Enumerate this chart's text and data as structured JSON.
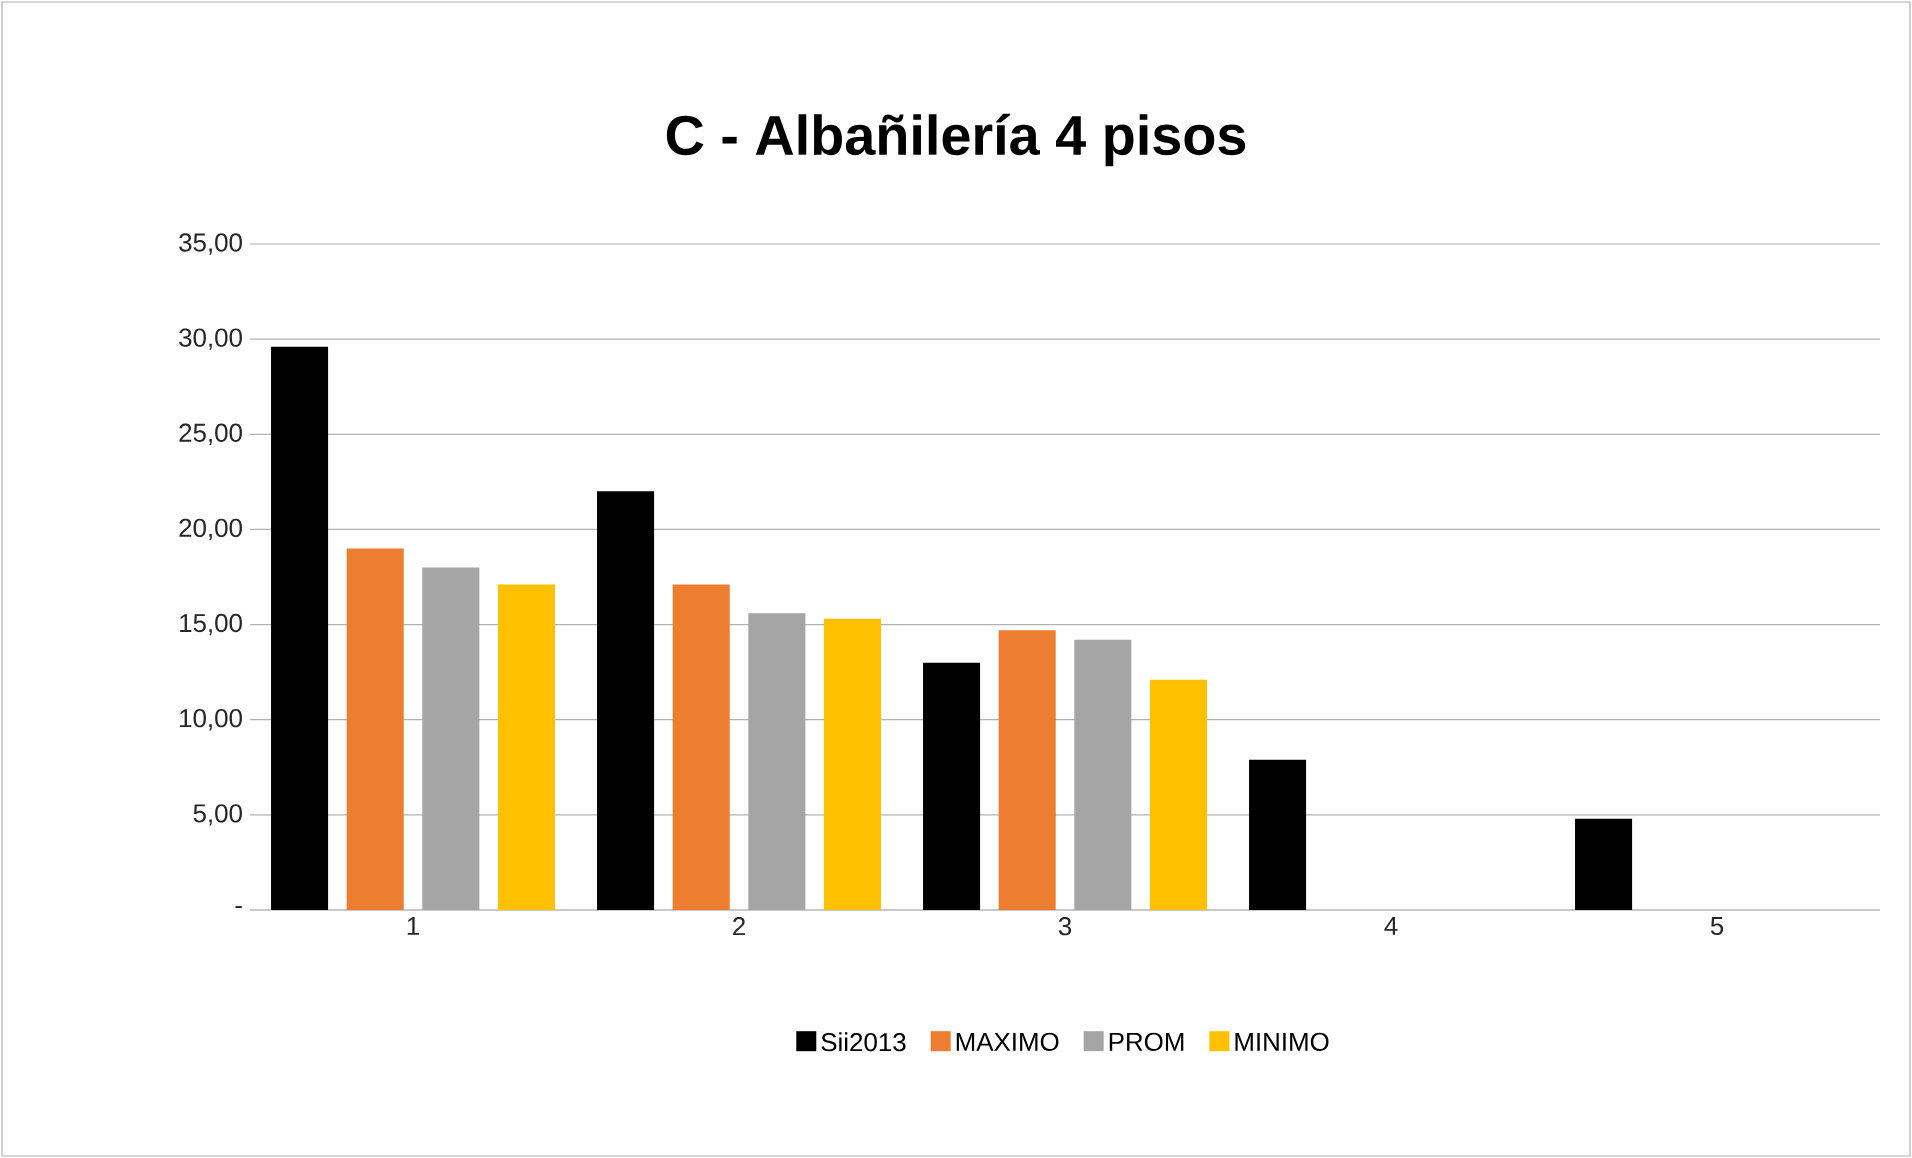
{
  "chart_data": {
    "type": "bar",
    "title": "C - Albañilería 4 pisos",
    "categories": [
      "1",
      "2",
      "3",
      "4",
      "5"
    ],
    "series": [
      {
        "name": "Sii2013",
        "color": "#000000",
        "values": [
          29.6,
          22.0,
          13.0,
          7.9,
          4.8
        ]
      },
      {
        "name": "MAXIMO",
        "color": "#ed7d31",
        "values": [
          19.0,
          17.1,
          14.7,
          null,
          null
        ]
      },
      {
        "name": "PROM",
        "color": "#a5a5a5",
        "values": [
          18.0,
          15.6,
          14.2,
          null,
          null
        ]
      },
      {
        "name": "MINIMO",
        "color": "#ffc000",
        "values": [
          17.1,
          15.3,
          12.1,
          null,
          null
        ]
      }
    ],
    "ylim": [
      0,
      35
    ],
    "yticks": [
      {
        "value": 0,
        "label": "-"
      },
      {
        "value": 5,
        "label": "5,00"
      },
      {
        "value": 10,
        "label": "10,00"
      },
      {
        "value": 15,
        "label": "15,00"
      },
      {
        "value": 20,
        "label": "20,00"
      },
      {
        "value": 25,
        "label": "25,00"
      },
      {
        "value": 30,
        "label": "30,00"
      },
      {
        "value": 35,
        "label": "35,00"
      }
    ],
    "grid": "y",
    "legend": "bottom"
  }
}
